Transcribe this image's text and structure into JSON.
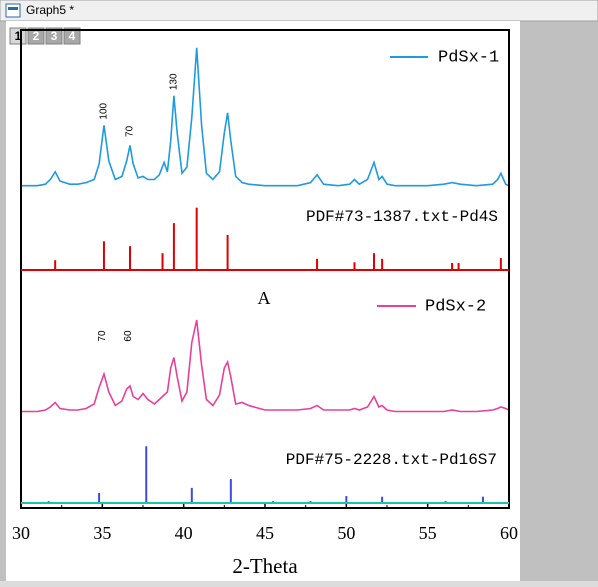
{
  "window": {
    "title": "Graph5 *",
    "tabs": [
      "1",
      "2",
      "3",
      "4"
    ]
  },
  "chart_data": [
    {
      "type": "line",
      "x": [
        30,
        30.5,
        31,
        31.5,
        31.8,
        32.1,
        32.4,
        33,
        33.5,
        34,
        34.5,
        34.8,
        35.1,
        35.4,
        35.8,
        36.2,
        36.5,
        36.7,
        36.9,
        37.2,
        37.5,
        37.8,
        38.2,
        38.5,
        38.8,
        39.0,
        39.2,
        39.4,
        39.6,
        39.9,
        40.2,
        40.5,
        40.8,
        41.1,
        41.4,
        41.8,
        42.2,
        42.5,
        42.7,
        42.9,
        43.2,
        43.6,
        44,
        45,
        46,
        47,
        47.8,
        48.2,
        48.6,
        49.5,
        50.2,
        50.5,
        50.8,
        51.3,
        51.7,
        52.0,
        52.2,
        52.5,
        53,
        54,
        55,
        56,
        56.5,
        57,
        58,
        59,
        59.3,
        59.5,
        59.8,
        60
      ],
      "series": [
        {
          "name": "PdSx-1",
          "color": "#1e9be0",
          "values": [
            6,
            6,
            6,
            7,
            10,
            15,
            9,
            7,
            7,
            8,
            10,
            20,
            45,
            22,
            10,
            12,
            22,
            32,
            20,
            11,
            12,
            10,
            10,
            13,
            21,
            15,
            35,
            64,
            40,
            14,
            18,
            50,
            95,
            45,
            14,
            10,
            15,
            40,
            53,
            35,
            12,
            8,
            7,
            6,
            6,
            6,
            8,
            13,
            7,
            6,
            7,
            10,
            7,
            10,
            21,
            10,
            12,
            7,
            6,
            6,
            6,
            7,
            8,
            7,
            6,
            7,
            10,
            14,
            7,
            6
          ]
        }
      ],
      "ylim": [
        0,
        100
      ],
      "annotations": [
        {
          "text": "100",
          "x": 35.1
        },
        {
          "text": "70",
          "x": 36.7
        },
        {
          "text": "130",
          "x": 39.4
        }
      ]
    },
    {
      "type": "stick",
      "label": "PDF#73-1387.txt-Pd4S",
      "color": "#e00000",
      "x": [
        32.1,
        35.1,
        36.7,
        38.7,
        39.4,
        40.8,
        42.7,
        48.2,
        50.5,
        51.7,
        52.2,
        56.5,
        56.9,
        59.5
      ],
      "values": [
        14,
        41,
        34,
        24,
        67,
        89,
        50,
        16,
        11,
        24,
        16,
        10,
        10,
        17
      ],
      "ylim": [
        0,
        100
      ]
    },
    {
      "type": "line",
      "x": [
        30,
        30.5,
        31,
        31.5,
        31.8,
        32.1,
        32.4,
        33,
        33.5,
        34,
        34.5,
        34.8,
        35.1,
        35.4,
        35.8,
        36.2,
        36.5,
        36.7,
        36.9,
        37.2,
        37.5,
        37.8,
        38.2,
        38.5,
        38.8,
        39.0,
        39.2,
        39.4,
        39.6,
        39.9,
        40.2,
        40.5,
        40.8,
        41.1,
        41.4,
        41.8,
        42.2,
        42.5,
        42.7,
        42.9,
        43.2,
        43.6,
        44,
        45,
        46,
        47,
        47.8,
        48.2,
        48.6,
        49.5,
        50.2,
        50.5,
        50.8,
        51.3,
        51.7,
        52.0,
        52.2,
        52.5,
        53,
        54,
        55,
        56,
        56.5,
        57,
        58,
        59,
        59.3,
        59.5,
        59.8,
        60
      ],
      "series": [
        {
          "name": "PdSx-2",
          "color": "#e8409a",
          "values": [
            9,
            9,
            9,
            10,
            12,
            15,
            11,
            10,
            10,
            11,
            14,
            25,
            34,
            22,
            13,
            16,
            24,
            26,
            19,
            17,
            21,
            17,
            14,
            17,
            20,
            22,
            38,
            45,
            32,
            16,
            22,
            55,
            70,
            40,
            17,
            13,
            20,
            38,
            42,
            32,
            14,
            15,
            13,
            10,
            10,
            10,
            11,
            13,
            10,
            10,
            10,
            11,
            10,
            12,
            19,
            12,
            13,
            10,
            9,
            9,
            9,
            9,
            10,
            9,
            9,
            10,
            11,
            12,
            11,
            10
          ]
        }
      ],
      "ylim": [
        0,
        100
      ],
      "annotations": [
        {
          "text": "70",
          "x": 35.0
        },
        {
          "text": "60",
          "x": 36.6
        }
      ],
      "note": "A"
    },
    {
      "type": "stick",
      "label": "PDF#75-2228.txt-Pd16S7",
      "color": "#3a4de0",
      "x": [
        31.7,
        34.8,
        37.7,
        40.5,
        42.9,
        45.5,
        47.8,
        50.0,
        52.2,
        56.1,
        58.4
      ],
      "values": [
        3,
        16,
        90,
        24,
        38,
        3,
        3,
        11,
        10,
        3,
        10
      ],
      "ylim": [
        0,
        100
      ],
      "xlim": [
        30,
        60
      ],
      "xticks": [
        30,
        35,
        40,
        45,
        50,
        55,
        60
      ],
      "xlabel": "2-Theta"
    }
  ]
}
